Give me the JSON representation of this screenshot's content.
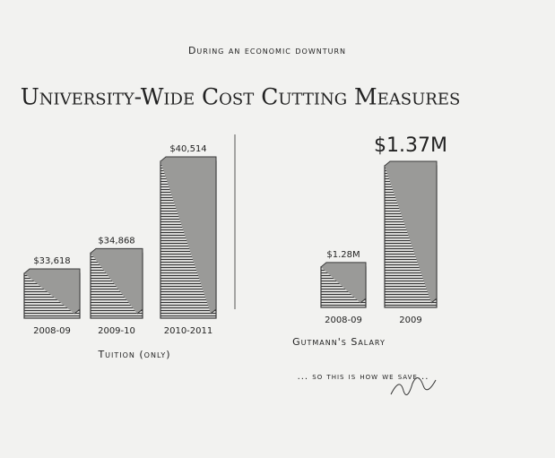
{
  "header": {
    "kicker": "During an economic downturn",
    "title": "University-Wide Cost Cutting Measures"
  },
  "caption": "... so this is how we save...",
  "chart_data": [
    {
      "type": "bar",
      "xlabel": "Tuition (only)",
      "categories": [
        "2008-09",
        "2009-10",
        "2010-2011"
      ],
      "values": [
        33618,
        34868,
        40514
      ],
      "value_labels": [
        "$33,618",
        "$34,868",
        "$40,514"
      ],
      "color": "#3a3a3a"
    },
    {
      "type": "bar",
      "xlabel": "Gutmann's Salary",
      "categories": [
        "2008-09",
        "2009"
      ],
      "values": [
        1280000,
        1370000
      ],
      "value_labels": [
        "$1.28M",
        "$1.37M"
      ],
      "color": "#3a3a3a"
    }
  ]
}
